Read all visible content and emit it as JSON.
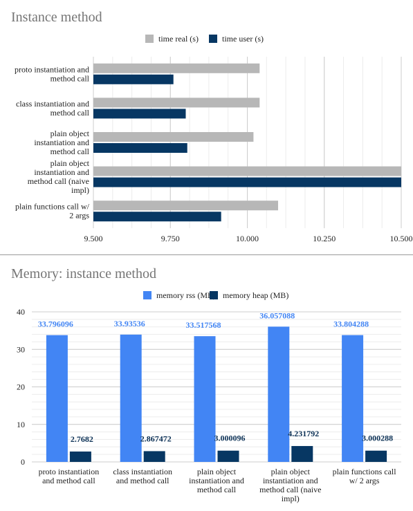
{
  "charts": [
    {
      "title": "Instance method"
    },
    {
      "title": "Memory: instance method"
    }
  ],
  "chart_data": [
    {
      "type": "bar",
      "orientation": "horizontal",
      "title": "Instance method",
      "categories": [
        [
          "proto instantiation and",
          "method call"
        ],
        [
          "class instantiation and",
          "method call"
        ],
        [
          "plain object",
          "instantiation and",
          "method call"
        ],
        [
          "plain object",
          "instantiation and",
          "method call (naive",
          "impl)"
        ],
        [
          "plain functions call w/",
          "2 args"
        ]
      ],
      "series": [
        {
          "name": "time real (s)",
          "color": "#b7b7b7",
          "values": [
            10.04,
            10.04,
            10.02,
            10.5,
            10.1
          ]
        },
        {
          "name": "time user (s)",
          "color": "#073763",
          "values": [
            9.76,
            9.8,
            9.805,
            10.5,
            9.915
          ]
        }
      ],
      "xlim": [
        9.5,
        10.5
      ],
      "ticks": [
        "9.500",
        "9.750",
        "10.000",
        "10.250",
        "10.500"
      ],
      "tick_values": [
        9.5,
        9.75,
        10.0,
        10.25,
        10.5
      ],
      "grid": true,
      "legend": "top-center"
    },
    {
      "type": "bar",
      "orientation": "vertical",
      "title": "Memory: instance method",
      "categories": [
        [
          "proto instantiation",
          "and method call"
        ],
        [
          "class instantiation",
          "and method call"
        ],
        [
          "plain object",
          "instantiation and",
          "method call"
        ],
        [
          "plain object",
          "instantiation and",
          "method call (naive",
          "impl)"
        ],
        [
          "plain functions call",
          "w/ 2 args"
        ]
      ],
      "series": [
        {
          "name": "memory rss (MB)",
          "color": "#4285f4",
          "values": [
            33.796096,
            33.93536,
            33.517568,
            36.057088,
            33.804288
          ],
          "labels": [
            "33.796096",
            "33.93536",
            "33.517568",
            "36.057088",
            "33.804288"
          ]
        },
        {
          "name": "memory heap (MB)",
          "color": "#073763",
          "values": [
            2.7682,
            2.867472,
            3.000096,
            4.231792,
            3.000288
          ],
          "labels": [
            "2.7682",
            "2.867472",
            "3.000096",
            "4.231792",
            "3.000288"
          ]
        }
      ],
      "ylim": [
        0,
        40
      ],
      "ticks": [
        "0",
        "10",
        "20",
        "30",
        "40"
      ],
      "tick_values": [
        0,
        10,
        20,
        30,
        40
      ],
      "grid": true,
      "legend": "top-center"
    }
  ]
}
